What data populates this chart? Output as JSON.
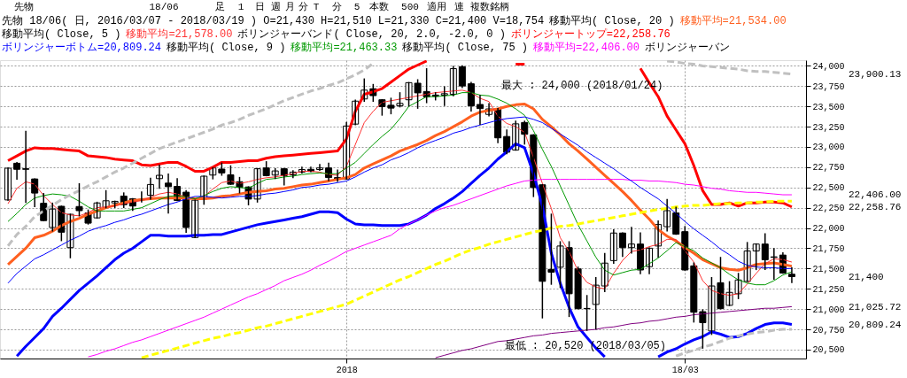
{
  "chart_data": {
    "type": "candlestick",
    "title": "先物 18/06( 日, 2016/03/07 - 2018/03/19 ) O=21,430 H=21,510 L=21,330 C=21,400 V=18,754",
    "annotations": [
      "先物",
      "18/06",
      "足",
      "1",
      "日",
      "週",
      "月",
      "分",
      "T",
      "分",
      "5",
      "本数",
      "500",
      "適用",
      "連",
      "複数銘柄",
      "移動平均( Close, 20 )",
      "移動平均( Close, 5 )",
      "ボリンジャーバンド( Close, 20, 2.0, -2.0, 0 )",
      "移動平均( Close, 9 )",
      "移動平均( Close, 75 )",
      "ボリンジャーバン",
      "最大 : 24,000 (2018/01/24)",
      "最低 : 20,520 (2018/03/05)",
      "23,900.13",
      "22,406.00",
      "22,258.76",
      "21,400",
      "21,025.72",
      "20,809.24"
    ],
    "categories": [
      null,
      null,
      null,
      null,
      null,
      null,
      null,
      null,
      null,
      null,
      null,
      null,
      null,
      null,
      null,
      null,
      null,
      null,
      null,
      null,
      null,
      null,
      null,
      null,
      null,
      null,
      null,
      null,
      null,
      null,
      null,
      null,
      null,
      null,
      null,
      null,
      null,
      null,
      "2018",
      null,
      null,
      null,
      null,
      null,
      null,
      null,
      null,
      null,
      null,
      null,
      null,
      null,
      null,
      null,
      null,
      null,
      null,
      null,
      null,
      null,
      null,
      null,
      null,
      null,
      null,
      null,
      null,
      null,
      null,
      null,
      null,
      null,
      null,
      null,
      null,
      null,
      "18/03",
      null,
      null,
      null,
      null,
      null,
      null,
      null,
      null,
      null,
      null,
      null,
      null
    ],
    "ohlc": [
      [
        22346,
        22738,
        22346,
        22738
      ],
      [
        22799,
        22806,
        22605,
        22724
      ],
      [
        22731,
        23190,
        22316,
        22724
      ],
      [
        22605,
        22605,
        22265,
        22431
      ],
      [
        22305,
        22425,
        22091,
        22091
      ],
      [
        22006,
        22305,
        21965,
        22234
      ],
      [
        22268,
        22268,
        21846,
        21948
      ],
      [
        21758,
        22169,
        21635,
        22169
      ],
      [
        22265,
        22544,
        22152,
        22214
      ],
      [
        22186,
        22220,
        22050,
        22060
      ],
      [
        22125,
        22316,
        22125,
        22309
      ],
      [
        22251,
        22459,
        22251,
        22336
      ],
      [
        22309,
        22329,
        22254,
        22329
      ],
      [
        22394,
        22431,
        22254,
        22288
      ],
      [
        22360,
        22360,
        22220,
        22271
      ],
      [
        22353,
        22442,
        22322,
        22346
      ],
      [
        22404,
        22612,
        22357,
        22537
      ],
      [
        22609,
        22772,
        22493,
        22650
      ],
      [
        22554,
        22663,
        22186,
        22510
      ],
      [
        22513,
        22608,
        22340,
        22340
      ],
      [
        22442,
        22459,
        21948,
        22006
      ],
      [
        21883,
        22343,
        21883,
        22343
      ],
      [
        22357,
        22639,
        22295,
        22639
      ],
      [
        22653,
        22741,
        22608,
        22741
      ],
      [
        22727,
        22799,
        22653,
        22680
      ],
      [
        22656,
        22765,
        22540,
        22540
      ],
      [
        22571,
        22622,
        22435,
        22503
      ],
      [
        22506,
        22506,
        22288,
        22357
      ],
      [
        22357,
        22731,
        22322,
        22731
      ],
      [
        22741,
        22816,
        22646,
        22646
      ],
      [
        22653,
        22731,
        22612,
        22704
      ],
      [
        22731,
        22731,
        22534,
        22646
      ],
      [
        22656,
        22704,
        22622,
        22690
      ],
      [
        22690,
        22748,
        22680,
        22721
      ],
      [
        22724,
        22748,
        22697,
        22697
      ],
      [
        22721,
        22782,
        22714,
        22741
      ],
      [
        22741,
        22799,
        22588,
        22622
      ],
      [
        22622,
        22714,
        22578,
        22602
      ],
      [
        22605,
        23299,
        22605,
        23258
      ],
      [
        23282,
        23575,
        23275,
        23565
      ],
      [
        23592,
        23837,
        23565,
        23701
      ],
      [
        23718,
        23769,
        23565,
        23633
      ],
      [
        23582,
        23582,
        23394,
        23497
      ],
      [
        23514,
        23599,
        23411,
        23479
      ],
      [
        23507,
        23667,
        23496,
        23537
      ],
      [
        23582,
        23793,
        23507,
        23793
      ],
      [
        23786,
        23827,
        23479,
        23667
      ],
      [
        23684,
        23963,
        23548,
        23616
      ],
      [
        23640,
        23667,
        23582,
        23626
      ],
      [
        23640,
        23741,
        23514,
        23657
      ],
      [
        23650,
        23990,
        23633,
        23966
      ],
      [
        23990,
        24000,
        23735,
        23752
      ],
      [
        23779,
        23793,
        23445,
        23507
      ],
      [
        23524,
        23633,
        23282,
        23473
      ],
      [
        23401,
        23531,
        23384,
        23469
      ],
      [
        23473,
        23473,
        23054,
        23112
      ],
      [
        23129,
        23207,
        22918,
        22935
      ],
      [
        22962,
        23316,
        22962,
        23285
      ],
      [
        23302,
        23316,
        23037,
        23156
      ],
      [
        23149,
        23149,
        22390,
        22499
      ],
      [
        22533,
        22533,
        20893,
        21342
      ],
      [
        21489,
        22169,
        21308,
        21455
      ],
      [
        21516,
        21829,
        21268,
        21778
      ],
      [
        21758,
        21829,
        20910,
        21189
      ],
      [
        21496,
        21516,
        21005,
        21005
      ],
      [
        21008,
        21165,
        20740,
        21005
      ],
      [
        21057,
        21387,
        20757,
        21295
      ],
      [
        21285,
        21683,
        21216,
        21567
      ],
      [
        21598,
        21975,
        21567,
        21938
      ],
      [
        21938,
        21938,
        21652,
        21758
      ],
      [
        21758,
        22006,
        21693,
        21802
      ],
      [
        21802,
        21938,
        21438,
        21482
      ],
      [
        21523,
        21751,
        21438,
        21751
      ],
      [
        21778,
        22084,
        21642,
        22043
      ],
      [
        22016,
        22350,
        21965,
        22214
      ],
      [
        22186,
        22254,
        21924,
        21924
      ],
      [
        21955,
        22016,
        21482,
        21482
      ],
      [
        21533,
        21567,
        20842,
        20961
      ],
      [
        20968,
        20988,
        20520,
        20832
      ],
      [
        20730,
        21387,
        20689,
        21285
      ],
      [
        21325,
        21635,
        21005,
        21005
      ],
      [
        21046,
        21336,
        21046,
        21206
      ],
      [
        21189,
        21438,
        21131,
        21359
      ],
      [
        21342,
        21819,
        21342,
        21717
      ],
      [
        21717,
        21802,
        21489,
        21802
      ],
      [
        21802,
        21928,
        21489,
        21608
      ],
      [
        21644,
        21744,
        21370,
        21638
      ],
      [
        21666,
        21693,
        21445,
        21445
      ],
      [
        21430,
        21510,
        21330,
        21400
      ]
    ],
    "series": [
      {
        "type": "line",
        "name": "移動平均=21,534.00",
        "color": "#ff6020",
        "values": [
          21550,
          21650,
          21750,
          21880,
          21910,
          21960,
          22030,
          22080,
          22120,
          22170,
          22210,
          22250,
          22280,
          22310,
          22340,
          22350,
          22360,
          22370,
          22370,
          22370,
          22370,
          22360,
          22360,
          22370,
          22390,
          22400,
          22420,
          22440,
          22450,
          22460,
          22480,
          22490,
          22510,
          22530,
          22540,
          22560,
          22580,
          22600,
          22620,
          22660,
          22740,
          22790,
          22840,
          22890,
          22950,
          22990,
          23030,
          23080,
          23140,
          23190,
          23250,
          23310,
          23380,
          23430,
          23450,
          23470,
          23500,
          23520,
          23530,
          23470,
          23340,
          23250,
          23150,
          23040,
          22950,
          22850,
          22750,
          22650,
          22550,
          22450,
          22340,
          22220,
          22110,
          21980,
          21900,
          21840,
          21760,
          21690,
          21610,
          21560,
          21510,
          21490,
          21480,
          21510,
          21550,
          21560,
          21570,
          21550,
          21530
        ]
      },
      {
        "type": "line",
        "name": "移動平均=21,578.00",
        "color": "#ff3333",
        "values": [
          22300,
          22490,
          22570,
          22540,
          22400,
          22290,
          22190,
          22160,
          22150,
          22190,
          22250,
          22260,
          22270,
          22300,
          22320,
          22340,
          22380,
          22420,
          22440,
          22420,
          22380,
          22360,
          22390,
          22480,
          22560,
          22580,
          22550,
          22570,
          22600,
          22620,
          22630,
          22650,
          22670,
          22700,
          22700,
          22690,
          22660,
          22650,
          22760,
          23030,
          23300,
          23440,
          23550,
          23570,
          23590,
          23610,
          23630,
          23650,
          23670,
          23680,
          23690,
          23700,
          23670,
          23600,
          23560,
          23380,
          23290,
          23250,
          23180,
          22870,
          22550,
          22240,
          21880,
          21710,
          21470,
          21330,
          21270,
          21250,
          21440,
          21600,
          21710,
          21730,
          21770,
          21800,
          21860,
          21860,
          21720,
          21580,
          21350,
          21230,
          21190,
          21170,
          21190,
          21310,
          21440,
          21560,
          21620,
          21610,
          21580
        ]
      },
      {
        "type": "line",
        "name": "ボリンジャートップ=22,258.76",
        "color": "#ff0000",
        "values": [
          22830,
          22890,
          22950,
          22990,
          22980,
          22980,
          22970,
          22960,
          22950,
          22890,
          22880,
          22870,
          22850,
          22840,
          22830,
          22780,
          22770,
          22790,
          22810,
          22810,
          22760,
          22700,
          22700,
          22750,
          22810,
          22810,
          22820,
          22830,
          22830,
          22860,
          22880,
          22890,
          22900,
          22910,
          22920,
          22930,
          22940,
          22950,
          23100,
          23440,
          23650,
          23680,
          23720,
          23800,
          23880,
          23960,
          24010,
          24060,
          null,
          null,
          null,
          null,
          null,
          null,
          null,
          null,
          null,
          24020,
          24020,
          null,
          null,
          null,
          null,
          null,
          null,
          null,
          null,
          null,
          null,
          null,
          null,
          23970,
          23790,
          23620,
          23380,
          23210,
          23040,
          22770,
          22460,
          22290,
          22290,
          22310,
          22270,
          22310,
          22310,
          22320,
          22320,
          22310,
          22260
        ]
      },
      {
        "type": "line",
        "name": "ボリンジャーボトム=20,809.24",
        "color": "#0000ff",
        "values": [
          null,
          20420,
          20540,
          20650,
          20760,
          20910,
          21010,
          21120,
          21230,
          21320,
          21410,
          21510,
          21610,
          21690,
          21750,
          21830,
          21910,
          21910,
          21900,
          21900,
          21900,
          21910,
          21910,
          21920,
          21920,
          21950,
          21980,
          22010,
          22040,
          22060,
          22080,
          22100,
          22120,
          22140,
          22170,
          22200,
          22200,
          22190,
          22110,
          22050,
          22040,
          22040,
          22030,
          22030,
          22030,
          22050,
          22100,
          22160,
          22240,
          22300,
          22370,
          22450,
          22550,
          22650,
          22740,
          22850,
          22940,
          23040,
          22990,
          22670,
          22270,
          21690,
          21320,
          21020,
          20780,
          20650,
          20520,
          20410,
          null,
          null,
          null,
          null,
          null,
          20410,
          20470,
          20510,
          20570,
          20620,
          20660,
          20720,
          20690,
          20650,
          20660,
          20700,
          20760,
          20810,
          20830,
          20830,
          20810
        ]
      },
      {
        "type": "line",
        "name": "移動平均=21,463.33",
        "color": "#009900",
        "values": [
          22080,
          22180,
          22290,
          22370,
          22400,
          22420,
          22410,
          22390,
          22330,
          22260,
          22210,
          22210,
          22210,
          22210,
          22230,
          22250,
          22300,
          22350,
          22390,
          22400,
          22380,
          22360,
          22400,
          22450,
          22490,
          22510,
          22500,
          22490,
          22550,
          22600,
          22610,
          22630,
          22640,
          22660,
          22670,
          22680,
          22670,
          22670,
          22740,
          22810,
          22920,
          23030,
          23130,
          23220,
          23350,
          23500,
          23560,
          23620,
          23620,
          23630,
          23640,
          23670,
          23670,
          23640,
          23630,
          23590,
          23540,
          23470,
          23390,
          23200,
          22970,
          22760,
          22520,
          22280,
          22040,
          21840,
          21640,
          21480,
          21420,
          21450,
          21480,
          21490,
          21560,
          21630,
          21720,
          21820,
          21770,
          21720,
          21630,
          21570,
          21510,
          21430,
          21360,
          21320,
          21300,
          21300,
          21350,
          21420,
          21460
        ]
      },
      {
        "type": "line",
        "name": "移動平均=22,406.00",
        "color": "#ff00ff",
        "values": [
          null,
          null,
          null,
          null,
          null,
          null,
          null,
          null,
          null,
          20410,
          20440,
          20480,
          20510,
          20550,
          20590,
          20620,
          20660,
          20700,
          20740,
          20780,
          20820,
          20860,
          20900,
          20950,
          21000,
          21050,
          21100,
          21150,
          21190,
          21240,
          21290,
          21350,
          21390,
          21430,
          21480,
          21540,
          21590,
          21650,
          21710,
          21750,
          21790,
          21830,
          21870,
          21910,
          21990,
          22050,
          22100,
          22160,
          22210,
          22250,
          22280,
          22320,
          22360,
          22400,
          22440,
          22480,
          22520,
          22550,
          22580,
          22590,
          22600,
          22600,
          22600,
          22600,
          22600,
          22600,
          22600,
          22600,
          22600,
          22600,
          22590,
          22590,
          22580,
          22580,
          22570,
          22560,
          22540,
          22530,
          22510,
          22490,
          22480,
          22460,
          22450,
          22440,
          22440,
          22430,
          22420,
          22410,
          22410
        ]
      },
      {
        "type": "line",
        "color": "#c0c0c0",
        "line_style": "dashed",
        "values": [
          21780,
          21920,
          22020,
          22140,
          22210,
          22280,
          22350,
          22410,
          22460,
          22520,
          22570,
          22630,
          22690,
          22740,
          22800,
          22860,
          22920,
          22980,
          23020,
          23060,
          23100,
          23140,
          23180,
          23220,
          23270,
          23300,
          23340,
          23390,
          23430,
          23470,
          23520,
          23570,
          23610,
          23650,
          23690,
          23720,
          23760,
          23790,
          23840,
          23890,
          23950,
          24030,
          null,
          null,
          null,
          null,
          null,
          null,
          null,
          null,
          null,
          null,
          null,
          null,
          null,
          null,
          null,
          null,
          null,
          null,
          null,
          null,
          null,
          null,
          null,
          null,
          null,
          null,
          null,
          null,
          null,
          null,
          null,
          null,
          24060,
          24050,
          24030,
          24020,
          24000,
          23990,
          23980,
          23970,
          23960,
          23940,
          23930,
          23930,
          23920,
          23910,
          23900
        ]
      },
      {
        "type": "line",
        "color": "#c0c0c0",
        "line_style": "dashed",
        "values": [
          null,
          null,
          null,
          null,
          null,
          null,
          null,
          null,
          null,
          null,
          null,
          null,
          null,
          null,
          null,
          null,
          null,
          null,
          null,
          null,
          null,
          null,
          null,
          null,
          null,
          null,
          null,
          null,
          null,
          null,
          null,
          null,
          null,
          null,
          null,
          null,
          null,
          null,
          null,
          null,
          null,
          null,
          null,
          null,
          null,
          null,
          null,
          null,
          null,
          null,
          null,
          null,
          null,
          null,
          null,
          null,
          null,
          null,
          null,
          null,
          null,
          null,
          null,
          null,
          null,
          null,
          null,
          null,
          null,
          null,
          null,
          null,
          null,
          null,
          null,
          20420,
          20460,
          20490,
          20530,
          20560,
          20600,
          20640,
          20670,
          20690,
          20710,
          20720,
          20740,
          20750,
          20750
        ]
      },
      {
        "type": "line",
        "color": "#ffff00",
        "line_style": "dashed",
        "values": [
          null,
          null,
          null,
          null,
          null,
          null,
          null,
          null,
          null,
          null,
          null,
          null,
          null,
          null,
          null,
          20400,
          20430,
          20460,
          20490,
          20520,
          20550,
          20580,
          20610,
          20640,
          20660,
          20690,
          20710,
          20740,
          20770,
          20790,
          20820,
          20850,
          20880,
          20910,
          20940,
          20970,
          21000,
          21030,
          21060,
          21110,
          21160,
          21210,
          21260,
          21310,
          21360,
          21400,
          21450,
          21500,
          21550,
          21590,
          21640,
          21690,
          21730,
          21760,
          21800,
          21830,
          21860,
          21890,
          21920,
          21950,
          21970,
          22000,
          22020,
          22030,
          22050,
          22070,
          22090,
          22110,
          22130,
          22150,
          22170,
          22190,
          22210,
          22230,
          22240,
          22260,
          22270,
          22280,
          22280,
          22290,
          22300,
          22300,
          22310,
          22310,
          22320,
          22320,
          22330,
          22330,
          22330
        ]
      },
      {
        "type": "line",
        "color": "#0000ff",
        "values": [
          21320,
          21440,
          21530,
          21620,
          21670,
          21730,
          21790,
          21850,
          21900,
          21960,
          22000,
          22030,
          22070,
          22100,
          22140,
          22170,
          22210,
          22250,
          22290,
          22320,
          22360,
          22390,
          22390,
          22380,
          22370,
          22380,
          22390,
          22390,
          22400,
          22420,
          22430,
          22450,
          22470,
          22500,
          22510,
          22530,
          22540,
          22560,
          22580,
          22630,
          22690,
          22740,
          22780,
          22840,
          22880,
          22930,
          22990,
          23040,
          23080,
          23120,
          23170,
          23200,
          23240,
          23270,
          23300,
          23330,
          23350,
          23360,
          23370,
          23340,
          23300,
          23230,
          23160,
          23090,
          23020,
          22940,
          22870,
          22800,
          22730,
          22650,
          22580,
          22500,
          22430,
          22360,
          22270,
          22180,
          22080,
          21990,
          21910,
          21830,
          21740,
          21670,
          21590,
          21540,
          21520,
          21510,
          21510,
          21500,
          21500
        ]
      },
      {
        "type": "line",
        "color": "#800080",
        "values": [
          null,
          null,
          null,
          null,
          null,
          null,
          null,
          null,
          null,
          null,
          null,
          null,
          null,
          null,
          null,
          null,
          null,
          null,
          null,
          null,
          null,
          null,
          null,
          null,
          null,
          null,
          null,
          null,
          null,
          null,
          null,
          null,
          null,
          null,
          null,
          null,
          null,
          null,
          null,
          null,
          null,
          null,
          null,
          null,
          null,
          null,
          null,
          null,
          20400,
          20430,
          20460,
          20490,
          20510,
          20540,
          20570,
          20600,
          20610,
          20630,
          20650,
          20670,
          20680,
          20700,
          20710,
          20720,
          20730,
          20740,
          20750,
          20770,
          20780,
          20800,
          20820,
          20830,
          20850,
          20860,
          20880,
          20900,
          20910,
          20930,
          20940,
          20950,
          20960,
          20970,
          20980,
          20990,
          21000,
          21010,
          21010,
          21020,
          21030
        ]
      }
    ],
    "ylim": [
      20390,
      24070
    ],
    "yticks": [
      {
        "value": 20500,
        "label": "20,500"
      },
      {
        "value": 20750,
        "label": "20,750"
      },
      {
        "value": 21000,
        "label": "21,000"
      },
      {
        "value": 21250,
        "label": "21,250"
      },
      {
        "value": 21500,
        "label": "21,500"
      },
      {
        "value": 21750,
        "label": "21,750"
      },
      {
        "value": 22000,
        "label": "22,000"
      },
      {
        "value": 22250,
        "label": "22,250"
      },
      {
        "value": 22500,
        "label": "22,500"
      },
      {
        "value": 22750,
        "label": "22,750"
      },
      {
        "value": 23000,
        "label": "23,000"
      },
      {
        "value": 23250,
        "label": "23,250"
      },
      {
        "value": 23500,
        "label": "23,500"
      },
      {
        "value": 23750,
        "label": "23,750"
      },
      {
        "value": 24000,
        "label": "24,000"
      }
    ],
    "grid": true,
    "legend": "top"
  }
}
